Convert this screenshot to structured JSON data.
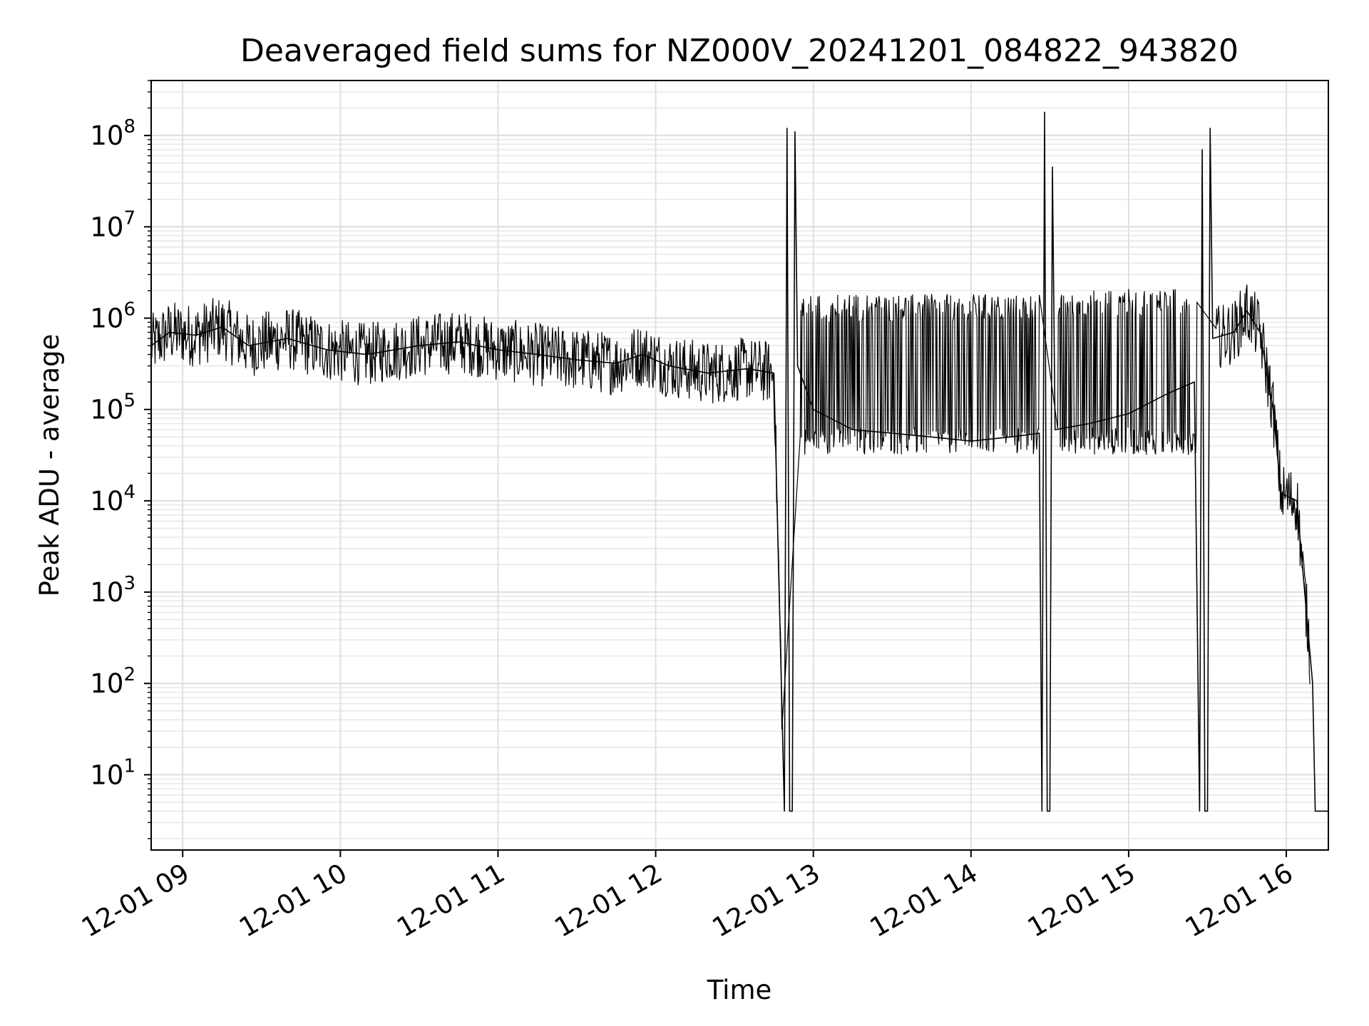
{
  "chart_data": {
    "type": "line",
    "title": "Deaveraged field sums for NZ000V_20241201_084822_943820",
    "xlabel": "Time",
    "ylabel": "Peak ADU - average",
    "yscale": "log",
    "ylim": [
      1.5,
      400000000
    ],
    "xlim": [
      "2024-12-01 08:48",
      "2024-12-01 16:16"
    ],
    "grid": true,
    "x_ticks": [
      {
        "t": "2024-12-01 09:00",
        "label": "12-01 09"
      },
      {
        "t": "2024-12-01 10:00",
        "label": "12-01 10"
      },
      {
        "t": "2024-12-01 11:00",
        "label": "12-01 11"
      },
      {
        "t": "2024-12-01 12:00",
        "label": "12-01 12"
      },
      {
        "t": "2024-12-01 13:00",
        "label": "12-01 13"
      },
      {
        "t": "2024-12-01 14:00",
        "label": "12-01 14"
      },
      {
        "t": "2024-12-01 15:00",
        "label": "12-01 15"
      },
      {
        "t": "2024-12-01 16:00",
        "label": "12-01 16"
      }
    ],
    "y_ticks": [
      {
        "value": 10,
        "base": "10",
        "exp": "1"
      },
      {
        "value": 100,
        "base": "10",
        "exp": "2"
      },
      {
        "value": 1000,
        "base": "10",
        "exp": "3"
      },
      {
        "value": 10000,
        "base": "10",
        "exp": "4"
      },
      {
        "value": 100000,
        "base": "10",
        "exp": "5"
      },
      {
        "value": 1000000,
        "base": "10",
        "exp": "6"
      },
      {
        "value": 10000000,
        "base": "10",
        "exp": "7"
      },
      {
        "value": 100000000,
        "base": "10",
        "exp": "8"
      }
    ],
    "series": [
      {
        "color": "#000000",
        "points": [
          [
            "2024-12-01 08:48",
            500000
          ],
          [
            "2024-12-01 08:55",
            700000
          ],
          [
            "2024-12-01 09:05",
            650000
          ],
          [
            "2024-12-01 09:15",
            800000
          ],
          [
            "2024-12-01 09:25",
            500000
          ],
          [
            "2024-12-01 09:40",
            600000
          ],
          [
            "2024-12-01 09:55",
            450000
          ],
          [
            "2024-12-01 10:10",
            400000
          ],
          [
            "2024-12-01 10:30",
            500000
          ],
          [
            "2024-12-01 10:45",
            550000
          ],
          [
            "2024-12-01 11:00",
            450000
          ],
          [
            "2024-12-01 11:15",
            400000
          ],
          [
            "2024-12-01 11:30",
            350000
          ],
          [
            "2024-12-01 11:45",
            320000
          ],
          [
            "2024-12-01 11:55",
            400000
          ],
          [
            "2024-12-01 12:05",
            300000
          ],
          [
            "2024-12-01 12:20",
            250000
          ],
          [
            "2024-12-01 12:35",
            280000
          ],
          [
            "2024-12-01 12:45",
            250000
          ],
          [
            "2024-12-01 12:49",
            4
          ],
          [
            "2024-12-01 12:50",
            120000000
          ],
          [
            "2024-12-01 12:51",
            4
          ],
          [
            "2024-12-01 12:52",
            4
          ],
          [
            "2024-12-01 12:53",
            110000000
          ],
          [
            "2024-12-01 12:54",
            300000
          ],
          [
            "2024-12-01 13:00",
            100000
          ],
          [
            "2024-12-01 13:15",
            60000
          ],
          [
            "2024-12-01 13:30",
            55000
          ],
          [
            "2024-12-01 13:45",
            50000
          ],
          [
            "2024-12-01 14:00",
            45000
          ],
          [
            "2024-12-01 14:15",
            50000
          ],
          [
            "2024-12-01 14:26",
            55000
          ],
          [
            "2024-12-01 14:27",
            4
          ],
          [
            "2024-12-01 14:28",
            180000000
          ],
          [
            "2024-12-01 14:29",
            4
          ],
          [
            "2024-12-01 14:30",
            4
          ],
          [
            "2024-12-01 14:31",
            45000000
          ],
          [
            "2024-12-01 14:32",
            60000
          ],
          [
            "2024-12-01 14:45",
            70000
          ],
          [
            "2024-12-01 15:00",
            90000
          ],
          [
            "2024-12-01 15:15",
            150000
          ],
          [
            "2024-12-01 15:25",
            200000
          ],
          [
            "2024-12-01 15:27",
            4
          ],
          [
            "2024-12-01 15:28",
            70000000
          ],
          [
            "2024-12-01 15:29",
            4
          ],
          [
            "2024-12-01 15:30",
            4
          ],
          [
            "2024-12-01 15:31",
            120000000
          ],
          [
            "2024-12-01 15:32",
            600000
          ],
          [
            "2024-12-01 15:40",
            700000
          ],
          [
            "2024-12-01 15:45",
            1200000
          ],
          [
            "2024-12-01 15:50",
            700000
          ],
          [
            "2024-12-01 15:55",
            100000
          ],
          [
            "2024-12-01 15:58",
            12000
          ],
          [
            "2024-12-01 16:04",
            10000
          ],
          [
            "2024-12-01 16:07",
            1000
          ],
          [
            "2024-12-01 16:10",
            100
          ],
          [
            "2024-12-01 16:11",
            4
          ],
          [
            "2024-12-01 16:16",
            4
          ]
        ]
      }
    ]
  }
}
